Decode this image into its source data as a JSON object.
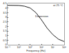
{
  "chart_data": {
    "type": "line",
    "x_label": "Frequency (Hz)",
    "log": "x",
    "grid": false,
    "color": "#222222",
    "x": [
      0.1,
      1,
      10,
      100,
      1000,
      10000,
      100000,
      1000000,
      10000000,
      100000000,
      1000000000
    ],
    "values": [
      4.3,
      4.3,
      4.28,
      4.2,
      4.0,
      3.5,
      2.7,
      1.8,
      1.1,
      0.6,
      0.35
    ],
    "xlim": [
      0.1,
      1000000000
    ],
    "xticks": [
      {
        "value": 0.1,
        "label": "10⁻¹"
      },
      {
        "value": 10,
        "label": "10¹"
      },
      {
        "value": 1000,
        "label": "10³"
      },
      {
        "value": 100000,
        "label": "10⁵"
      },
      {
        "value": 10000000,
        "label": "10⁷"
      },
      {
        "value": 1000000000,
        "label": "10⁹"
      }
    ],
    "ylim": [
      0,
      4.5
    ],
    "yticks": [
      0,
      0.5,
      1,
      1.5,
      2,
      2.5,
      3,
      3.5,
      4,
      4.5
    ],
    "annotations": [
      {
        "text": "Dispersion",
        "x": 100000,
        "y": 3.1
      },
      {
        "text": "at 25 °C",
        "x": 100000000,
        "y": 4.3
      }
    ]
  }
}
